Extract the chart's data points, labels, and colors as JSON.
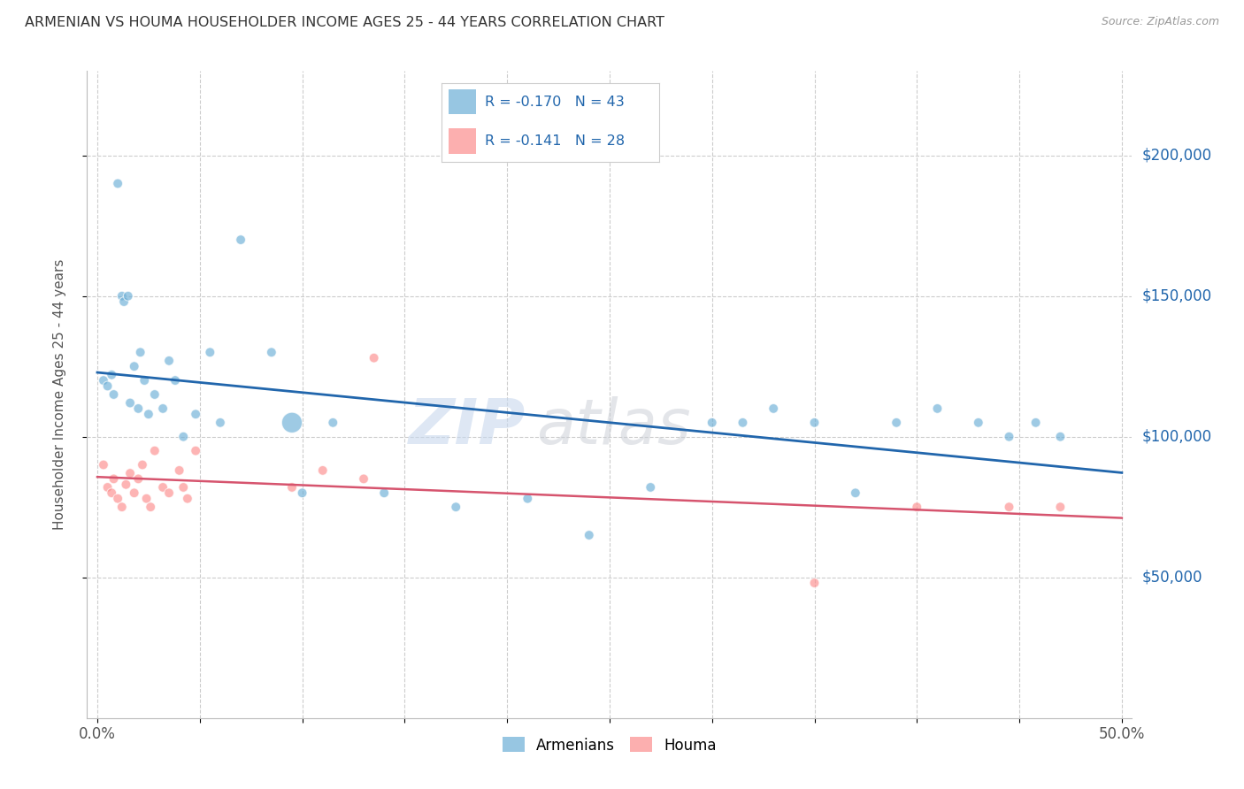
{
  "title": "ARMENIAN VS HOUMA HOUSEHOLDER INCOME AGES 25 - 44 YEARS CORRELATION CHART",
  "source": "Source: ZipAtlas.com",
  "ylabel_label": "Householder Income Ages 25 - 44 years",
  "xlim": [
    -0.005,
    0.505
  ],
  "ylim": [
    0,
    230000
  ],
  "xticks": [
    0.0,
    0.05,
    0.1,
    0.15,
    0.2,
    0.25,
    0.3,
    0.35,
    0.4,
    0.45,
    0.5
  ],
  "xtick_labels_show": [
    "0.0%",
    "",
    "",
    "",
    "",
    "",
    "",
    "",
    "",
    "",
    "50.0%"
  ],
  "ytick_positions": [
    50000,
    100000,
    150000,
    200000
  ],
  "ytick_labels": [
    "$50,000",
    "$100,000",
    "$150,000",
    "$200,000"
  ],
  "armenian_color": "#6baed6",
  "houma_color": "#fc8d8d",
  "armenian_line_color": "#2166ac",
  "houma_line_color": "#d6546e",
  "legend_text_color": "#2166ac",
  "title_color": "#333333",
  "grid_color": "#cccccc",
  "watermark": "ZIPAtlas",
  "legend_r_armenian": "R = -0.170",
  "legend_n_armenian": "N = 43",
  "legend_r_houma": "R = -0.141",
  "legend_n_houma": "N = 28",
  "armenian_x": [
    0.003,
    0.005,
    0.007,
    0.008,
    0.01,
    0.012,
    0.013,
    0.015,
    0.016,
    0.018,
    0.02,
    0.021,
    0.023,
    0.025,
    0.028,
    0.032,
    0.035,
    0.038,
    0.042,
    0.048,
    0.055,
    0.06,
    0.07,
    0.085,
    0.095,
    0.1,
    0.115,
    0.14,
    0.175,
    0.21,
    0.24,
    0.27,
    0.3,
    0.315,
    0.33,
    0.35,
    0.37,
    0.39,
    0.41,
    0.43,
    0.445,
    0.458,
    0.47
  ],
  "armenian_y": [
    120000,
    118000,
    122000,
    115000,
    190000,
    150000,
    148000,
    150000,
    112000,
    125000,
    110000,
    130000,
    120000,
    108000,
    115000,
    110000,
    127000,
    120000,
    100000,
    108000,
    130000,
    105000,
    170000,
    130000,
    105000,
    80000,
    105000,
    80000,
    75000,
    78000,
    65000,
    82000,
    105000,
    105000,
    110000,
    105000,
    80000,
    105000,
    110000,
    105000,
    100000,
    105000,
    100000
  ],
  "armenian_sizes": [
    60,
    60,
    60,
    60,
    60,
    60,
    60,
    60,
    60,
    60,
    60,
    60,
    60,
    60,
    60,
    60,
    60,
    60,
    60,
    60,
    60,
    60,
    60,
    60,
    280,
    60,
    60,
    60,
    60,
    60,
    60,
    60,
    60,
    60,
    60,
    60,
    60,
    60,
    60,
    60,
    60,
    60,
    60
  ],
  "houma_x": [
    0.003,
    0.005,
    0.007,
    0.008,
    0.01,
    0.012,
    0.014,
    0.016,
    0.018,
    0.02,
    0.022,
    0.024,
    0.026,
    0.028,
    0.032,
    0.035,
    0.04,
    0.042,
    0.044,
    0.048,
    0.095,
    0.11,
    0.13,
    0.135,
    0.35,
    0.4,
    0.445,
    0.47
  ],
  "houma_y": [
    90000,
    82000,
    80000,
    85000,
    78000,
    75000,
    83000,
    87000,
    80000,
    85000,
    90000,
    78000,
    75000,
    95000,
    82000,
    80000,
    88000,
    82000,
    78000,
    95000,
    82000,
    88000,
    85000,
    128000,
    48000,
    75000,
    75000,
    75000
  ],
  "houma_sizes": [
    60,
    60,
    60,
    60,
    60,
    60,
    60,
    60,
    60,
    60,
    60,
    60,
    60,
    60,
    60,
    60,
    60,
    60,
    60,
    60,
    60,
    60,
    60,
    60,
    60,
    60,
    60,
    60
  ]
}
